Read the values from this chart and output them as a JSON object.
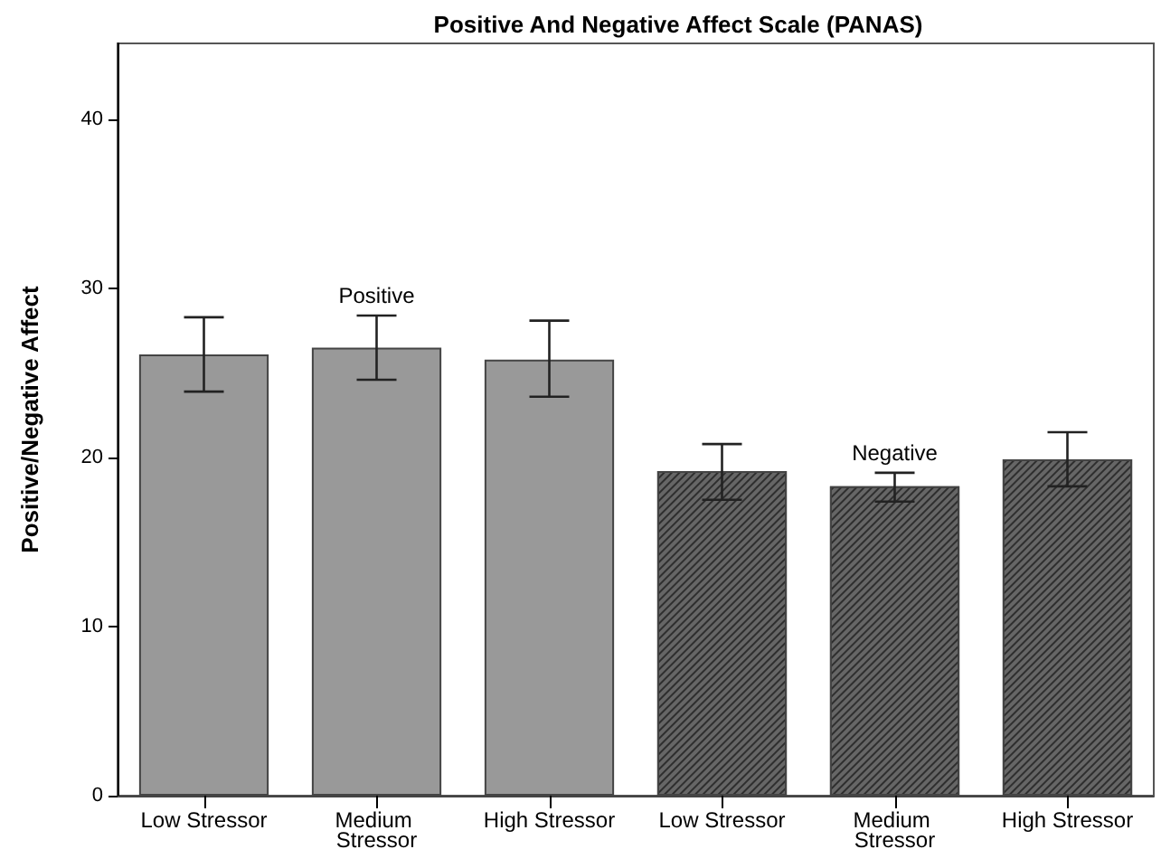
{
  "chart_data": {
    "type": "bar",
    "title": "Positive And Negative Affect Scale (PANAS)",
    "ylabel": "Positive/Negative Affect",
    "categories": [
      "Low Stressor",
      "Medium Stressor",
      "High Stressor",
      "Low Stressor",
      "Medium Stressor",
      "High Stressor"
    ],
    "series": [
      {
        "name": "Positive",
        "color": "#999999",
        "values": [
          26.1,
          26.5,
          25.8,
          null,
          null,
          null
        ],
        "errors": [
          [
            23.9,
            28.3
          ],
          [
            24.6,
            28.4
          ],
          [
            23.6,
            28.1
          ],
          null,
          null,
          null
        ]
      },
      {
        "name": "Negative",
        "color": "#666666",
        "values": [
          null,
          null,
          null,
          19.2,
          18.3,
          19.9
        ],
        "errors": [
          null,
          null,
          null,
          [
            17.5,
            20.8
          ],
          [
            17.4,
            19.1
          ],
          [
            18.3,
            21.5
          ]
        ]
      }
    ],
    "ylim": [
      0,
      44.5
    ],
    "yticks": [
      0,
      10,
      20,
      30,
      40
    ],
    "grid": false,
    "legend": false
  }
}
